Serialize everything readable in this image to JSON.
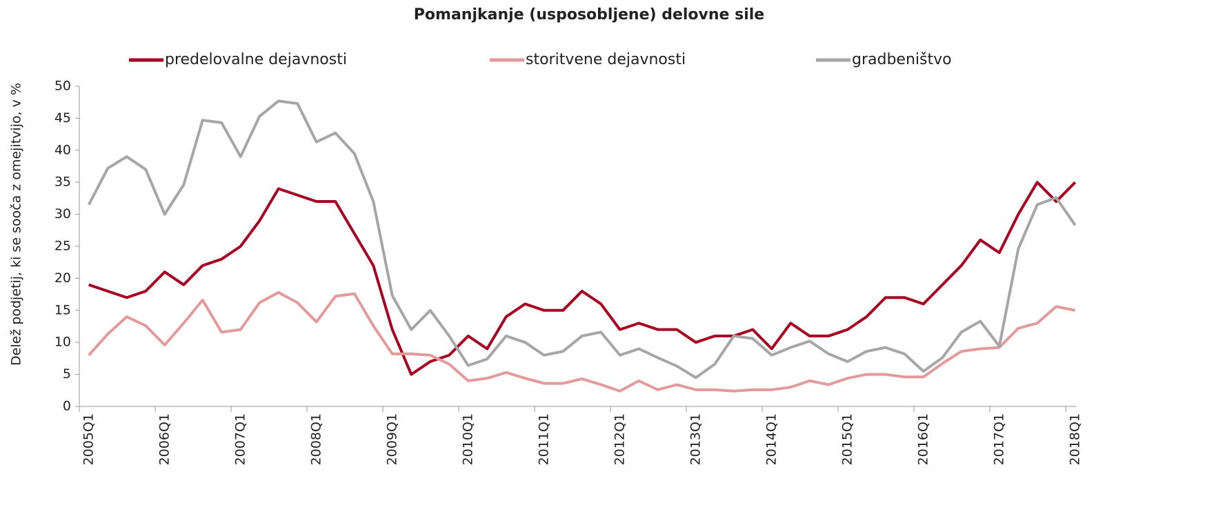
{
  "chart_data": {
    "type": "line",
    "title": "Pomanjkanje (usposobljene) delovne sile",
    "y_label": "Delež podjetij,  ki se sooča z omejitvijo, v %",
    "categories": [
      "2005Q1",
      null,
      null,
      null,
      "2006Q1",
      null,
      null,
      null,
      "2007Q1",
      null,
      null,
      null,
      "2008Q1",
      null,
      null,
      null,
      "2009Q1",
      null,
      null,
      null,
      "2010Q1",
      null,
      null,
      null,
      "2011Q1",
      null,
      null,
      null,
      "2012Q1",
      null,
      null,
      null,
      "2013Q1",
      null,
      null,
      null,
      "2014Q1",
      null,
      null,
      null,
      "2015Q1",
      null,
      null,
      null,
      "2016Q1",
      null,
      null,
      null,
      "2017Q1",
      null,
      null,
      null,
      "2018Q1"
    ],
    "series": [
      {
        "name": "predelovalne dejavnosti",
        "color": "#a50021",
        "values": [
          19,
          18,
          17,
          18,
          21,
          19,
          22,
          23,
          25,
          29,
          34,
          33,
          32,
          32,
          27,
          22,
          12,
          5,
          7,
          8,
          11,
          9,
          14,
          16,
          15,
          15,
          18,
          16,
          12,
          13,
          12,
          12,
          10,
          11,
          11,
          12,
          9,
          13,
          11,
          11,
          12,
          14,
          17,
          17,
          16,
          19,
          22,
          26,
          24,
          30,
          35,
          32,
          35
        ]
      },
      {
        "name": "storitvene dejavnosti",
        "color": "#e39a9a",
        "values": [
          8,
          11.3,
          14,
          12.6,
          9.6,
          13,
          16.6,
          11.6,
          12,
          16.2,
          17.8,
          16.2,
          13.2,
          17.2,
          17.6,
          12.6,
          8.2,
          8.2,
          8,
          6.6,
          4,
          4.4,
          5.3,
          4.4,
          3.6,
          3.6,
          4.3,
          3.4,
          2.4,
          4,
          2.6,
          3.4,
          2.6,
          2.6,
          2.4,
          2.6,
          2.6,
          3,
          4,
          3.4,
          4.4,
          5,
          5,
          4.6,
          4.6,
          6.7,
          8.6,
          9,
          9.2,
          12.2,
          13,
          15.6,
          15
        ]
      },
      {
        "name": "gradbeništvo",
        "color": "#a6a6a6",
        "values": [
          31.5,
          37.2,
          39,
          37,
          30,
          34.6,
          44.7,
          44.3,
          39,
          45.3,
          47.7,
          47.3,
          41.3,
          42.7,
          39.5,
          32,
          17.3,
          12,
          15,
          11,
          6.4,
          7.4,
          11,
          10,
          8,
          8.6,
          11,
          11.6,
          8,
          9,
          7.6,
          6.3,
          4.5,
          6.6,
          11,
          10.6,
          8,
          9.2,
          10.2,
          8.2,
          7,
          8.6,
          9.2,
          8.2,
          5.5,
          7.6,
          11.6,
          13.3,
          9.4,
          24.6,
          31.5,
          32.6,
          28.3
        ]
      }
    ],
    "ylim": [
      0,
      50
    ],
    "yticks": [
      0,
      5,
      10,
      15,
      20,
      25,
      30,
      35,
      40,
      45,
      50
    ],
    "legend": "top"
  }
}
